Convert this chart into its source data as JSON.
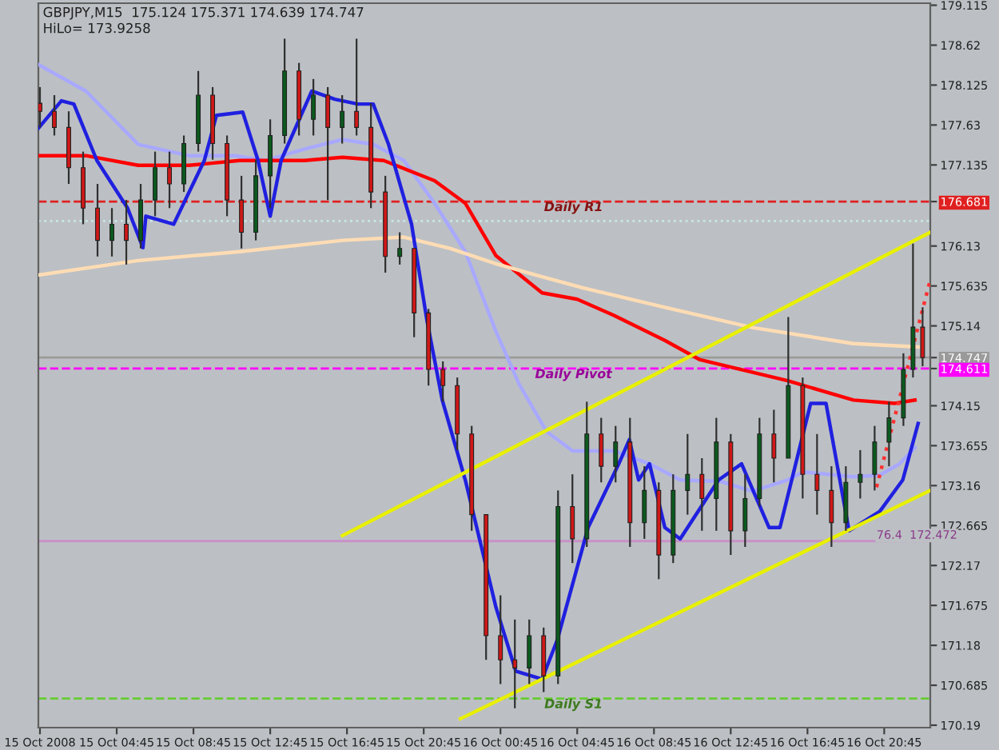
{
  "chart_data": {
    "type": "candlestick",
    "annotations": [
      "GBPJPY,M15  175.124 175.371 174.639 174.747",
      "HiLo= 173.9258",
      {
        "text": "76.4  172.472",
        "x": "2008-10-16T20:21",
        "y": 172.472
      }
    ],
    "x": [
      "2008-10-15T00:45",
      "2008-10-15T01:30",
      "2008-10-15T02:15",
      "2008-10-15T03:00",
      "2008-10-15T03:45",
      "2008-10-15T04:30",
      "2008-10-15T05:15",
      "2008-10-15T06:00",
      "2008-10-15T06:45",
      "2008-10-15T07:30",
      "2008-10-15T08:15",
      "2008-10-15T09:00",
      "2008-10-15T09:45",
      "2008-10-15T10:30",
      "2008-10-15T11:15",
      "2008-10-15T12:00",
      "2008-10-15T12:45",
      "2008-10-15T13:30",
      "2008-10-15T14:15",
      "2008-10-15T15:00",
      "2008-10-15T15:45",
      "2008-10-15T16:30",
      "2008-10-15T17:15",
      "2008-10-15T18:00",
      "2008-10-15T18:45",
      "2008-10-15T19:30",
      "2008-10-15T20:15",
      "2008-10-15T21:00",
      "2008-10-15T21:45",
      "2008-10-15T22:30",
      "2008-10-15T23:15",
      "2008-10-16T00:00",
      "2008-10-16T00:45",
      "2008-10-16T01:30",
      "2008-10-16T02:15",
      "2008-10-16T03:00",
      "2008-10-16T03:45",
      "2008-10-16T04:30",
      "2008-10-16T05:15",
      "2008-10-16T06:00",
      "2008-10-16T06:45",
      "2008-10-16T07:30",
      "2008-10-16T08:15",
      "2008-10-16T09:00",
      "2008-10-16T09:45",
      "2008-10-16T10:30",
      "2008-10-16T11:15",
      "2008-10-16T12:00",
      "2008-10-16T12:45",
      "2008-10-16T13:30",
      "2008-10-16T14:15",
      "2008-10-16T15:00",
      "2008-10-16T15:45",
      "2008-10-16T16:30",
      "2008-10-16T17:15",
      "2008-10-16T18:00",
      "2008-10-16T18:45",
      "2008-10-16T19:30",
      "2008-10-16T20:15",
      "2008-10-16T21:00",
      "2008-10-16T21:45",
      "2008-10-16T22:15",
      "2008-10-16T22:45"
    ],
    "ohlc": [
      [
        177.9,
        178.1,
        177.6,
        177.8
      ],
      [
        177.8,
        178.0,
        177.5,
        177.6
      ],
      [
        177.6,
        177.8,
        176.9,
        177.1
      ],
      [
        177.1,
        177.3,
        176.4,
        176.6
      ],
      [
        176.6,
        176.9,
        176.0,
        176.2
      ],
      [
        176.2,
        176.6,
        176.0,
        176.4
      ],
      [
        176.4,
        176.7,
        175.9,
        176.2
      ],
      [
        176.2,
        176.9,
        176.1,
        176.7
      ],
      [
        176.7,
        177.3,
        176.5,
        177.1
      ],
      [
        177.1,
        177.3,
        176.6,
        176.9
      ],
      [
        176.9,
        177.5,
        176.8,
        177.4
      ],
      [
        177.4,
        178.3,
        177.3,
        178.0
      ],
      [
        178.0,
        178.1,
        177.2,
        177.4
      ],
      [
        177.4,
        177.5,
        176.5,
        176.7
      ],
      [
        176.7,
        177.0,
        176.1,
        176.3
      ],
      [
        176.3,
        177.2,
        176.2,
        177.0
      ],
      [
        177.0,
        177.7,
        176.6,
        177.5
      ],
      [
        177.5,
        178.7,
        177.4,
        178.3
      ],
      [
        178.3,
        178.4,
        177.5,
        177.7
      ],
      [
        177.7,
        178.2,
        177.5,
        178.0
      ],
      [
        178.0,
        178.1,
        176.7,
        177.6
      ],
      [
        177.6,
        178.0,
        177.4,
        177.8
      ],
      [
        177.8,
        178.7,
        177.5,
        177.6
      ],
      [
        177.6,
        177.9,
        176.6,
        176.8
      ],
      [
        176.8,
        177.0,
        175.8,
        176.0
      ],
      [
        176.0,
        176.3,
        175.9,
        176.1
      ],
      [
        176.1,
        176.1,
        175.0,
        175.3
      ],
      [
        175.3,
        175.35,
        174.4,
        174.6
      ],
      [
        174.6,
        174.7,
        174.2,
        174.4
      ],
      [
        174.4,
        174.5,
        173.6,
        173.8
      ],
      [
        173.8,
        173.9,
        172.6,
        172.8
      ],
      [
        172.8,
        172.8,
        171.0,
        171.3
      ],
      [
        171.3,
        171.8,
        170.7,
        171.0
      ],
      [
        171.0,
        171.5,
        170.4,
        170.9
      ],
      [
        170.9,
        171.5,
        170.7,
        171.3
      ],
      [
        171.3,
        171.4,
        170.6,
        170.8
      ],
      [
        170.8,
        173.1,
        170.7,
        172.9
      ],
      [
        172.9,
        173.3,
        172.2,
        172.5
      ],
      [
        172.5,
        174.2,
        172.4,
        173.8
      ],
      [
        173.8,
        174.0,
        173.2,
        173.4
      ],
      [
        173.4,
        173.9,
        173.2,
        173.7
      ],
      [
        173.7,
        174.0,
        172.4,
        172.7
      ],
      [
        172.7,
        173.4,
        172.5,
        173.1
      ],
      [
        173.1,
        173.2,
        172.0,
        172.3
      ],
      [
        172.3,
        173.3,
        172.2,
        173.1
      ],
      [
        173.1,
        173.8,
        172.8,
        173.3
      ],
      [
        173.3,
        173.5,
        172.6,
        173.0
      ],
      [
        173.0,
        174.0,
        172.6,
        173.7
      ],
      [
        173.7,
        173.8,
        172.3,
        172.6
      ],
      [
        172.6,
        173.3,
        172.4,
        173.0
      ],
      [
        173.0,
        174.0,
        172.9,
        173.8
      ],
      [
        173.8,
        174.1,
        173.2,
        173.5
      ],
      [
        173.5,
        175.25,
        173.5,
        174.4
      ],
      [
        174.4,
        174.5,
        173.0,
        173.3
      ],
      [
        173.3,
        173.8,
        172.8,
        173.1
      ],
      [
        173.1,
        173.4,
        172.4,
        172.7
      ],
      [
        172.7,
        173.4,
        172.6,
        173.2
      ],
      [
        173.2,
        173.6,
        173.0,
        173.3
      ],
      [
        173.3,
        173.9,
        173.1,
        173.7
      ],
      [
        173.7,
        174.2,
        173.4,
        174.0
      ],
      [
        174.0,
        174.8,
        173.9,
        174.6
      ],
      [
        174.6,
        176.16,
        174.5,
        175.124
      ],
      [
        175.124,
        175.371,
        174.639,
        174.747
      ]
    ],
    "series": [
      {
        "type": "line",
        "color": "#a8a8ff",
        "x": [
          "2008-10-15T00:40",
          "2008-10-15T03:09",
          "2008-10-15T05:52",
          "2008-10-15T08:31",
          "2008-10-15T10:55",
          "2008-10-15T12:31",
          "2008-10-15T14:31",
          "2008-10-15T16:31",
          "2008-10-15T18:07",
          "2008-10-15T19:43",
          "2008-10-15T21:19",
          "2008-10-15T22:55",
          "2008-10-16T00:31",
          "2008-10-16T01:43",
          "2008-10-16T03:09",
          "2008-10-16T04:31",
          "2008-10-16T06:40",
          "2008-10-16T08:31",
          "2008-10-16T10:07",
          "2008-10-16T12:16",
          "2008-10-16T13:52",
          "2008-10-16T15:43",
          "2008-10-16T16:31",
          "2008-10-16T19:09",
          "2008-10-16T20:31",
          "2008-10-16T21:33",
          "2008-10-16T22:21"
        ],
        "values": [
          178.38,
          178.05,
          177.39,
          177.25,
          177.25,
          177.19,
          177.33,
          177.45,
          177.39,
          177.19,
          176.66,
          176.06,
          175.07,
          174.42,
          173.83,
          173.59,
          173.59,
          173.43,
          173.23,
          173.21,
          173.09,
          173.23,
          173.33,
          173.27,
          173.29,
          173.43,
          173.63
        ]
      },
      {
        "type": "line",
        "color": "#ff0000",
        "x": [
          "2008-10-15T00:40",
          "2008-10-15T03:09",
          "2008-10-15T05:52",
          "2008-10-15T08:31",
          "2008-10-15T11:09",
          "2008-10-15T14:31",
          "2008-10-15T16:31",
          "2008-10-15T18:40",
          "2008-10-15T21:19",
          "2008-10-15T22:55",
          "2008-10-16T00:31",
          "2008-10-16T02:55",
          "2008-10-16T04:45",
          "2008-10-16T06:40",
          "2008-10-16T09:19",
          "2008-10-16T11:09",
          "2008-10-16T15:43",
          "2008-10-16T19:09",
          "2008-10-16T21:19",
          "2008-10-16T22:21"
        ],
        "values": [
          177.25,
          177.25,
          177.13,
          177.13,
          177.19,
          177.19,
          177.23,
          177.19,
          176.94,
          176.66,
          176.01,
          175.55,
          175.47,
          175.27,
          174.96,
          174.72,
          174.46,
          174.22,
          174.18,
          174.22
        ]
      },
      {
        "type": "line",
        "color": "#ffdcb4",
        "x": [
          "2008-10-15T00:40",
          "2008-10-15T05:52",
          "2008-10-15T11:09",
          "2008-10-15T16:31",
          "2008-10-15T19:43",
          "2008-10-15T22:07",
          "2008-10-16T00:31",
          "2008-10-16T02:55",
          "2008-10-16T05:04",
          "2008-10-16T09:19",
          "2008-10-16T13:52",
          "2008-10-16T19:09",
          "2008-10-16T22:31"
        ],
        "values": [
          175.77,
          175.95,
          176.06,
          176.2,
          176.24,
          176.1,
          175.91,
          175.75,
          175.61,
          175.37,
          175.12,
          174.92,
          174.88
        ]
      },
      {
        "type": "line",
        "color": "#2020e0",
        "x": [
          "2008-10-15T00:40",
          "2008-10-15T01:52",
          "2008-10-15T02:31",
          "2008-10-15T03:43",
          "2008-10-15T05:19",
          "2008-10-15T06:07",
          "2008-10-15T06:16",
          "2008-10-15T07:43",
          "2008-10-15T09:19",
          "2008-10-15T09:57",
          "2008-10-15T11:19",
          "2008-10-15T12:07",
          "2008-10-15T12:45",
          "2008-10-15T13:19",
          "2008-10-15T14:55",
          "2008-10-15T16:07",
          "2008-10-15T17:19",
          "2008-10-15T18:07",
          "2008-10-15T18:55",
          "2008-10-15T20:07",
          "2008-10-15T20:55",
          "2008-10-15T21:43",
          "2008-10-15T22:55",
          "2008-10-16T00:31",
          "2008-10-16T01:33",
          "2008-10-16T02:55",
          "2008-10-16T03:43",
          "2008-10-16T05:19",
          "2008-10-16T06:55",
          "2008-10-16T07:28",
          "2008-10-16T07:57",
          "2008-10-16T08:31",
          "2008-10-16T09:19",
          "2008-10-16T10:07",
          "2008-10-16T12:07",
          "2008-10-16T13:19",
          "2008-10-16T14:45",
          "2008-10-16T15:19",
          "2008-10-16T16:55",
          "2008-10-16T17:43",
          "2008-10-16T18:55",
          "2008-10-16T20:31",
          "2008-10-16T21:43",
          "2008-10-16T22:31"
        ],
        "values": [
          177.59,
          177.93,
          177.89,
          177.19,
          176.6,
          176.11,
          176.5,
          176.4,
          177.19,
          177.75,
          177.79,
          177.19,
          176.5,
          177.19,
          178.05,
          177.95,
          177.89,
          177.89,
          177.39,
          176.4,
          175.21,
          174.22,
          173.23,
          171.65,
          170.86,
          170.76,
          171.25,
          172.64,
          173.43,
          173.73,
          173.23,
          173.43,
          172.64,
          172.5,
          173.23,
          173.43,
          172.64,
          172.64,
          174.18,
          174.18,
          172.6,
          172.84,
          173.23,
          173.93
        ]
      },
      {
        "type": "line",
        "color": "#e8f000",
        "x": [
          "2008-10-15T16:31",
          "2008-10-16T23:09"
        ],
        "values": [
          172.54,
          176.3
        ]
      },
      {
        "type": "line",
        "color": "#e8f000",
        "x": [
          "2008-10-15T22:40",
          "2008-10-16T23:09"
        ],
        "values": [
          170.27,
          173.1
        ]
      },
      {
        "type": "line",
        "color": "#ff3030",
        "line_style": "dotted",
        "x": [
          "2008-10-16T20:21",
          "2008-10-16T23:09"
        ],
        "values": [
          173.14,
          175.71
        ]
      }
    ],
    "ref_lines": [
      {
        "axis": "y",
        "value": 176.681,
        "label": "Daily R1",
        "color": "#e02020",
        "line_style": "dashed"
      },
      {
        "axis": "y",
        "value": 176.44,
        "label": null,
        "color": "#c8e8e8",
        "line_style": "dotted"
      },
      {
        "axis": "y",
        "value": 174.747,
        "label": null,
        "color": "#9a9a9a",
        "line_style": "solid"
      },
      {
        "axis": "y",
        "value": 174.611,
        "label": "Daily Pivot",
        "color": "#ff00ff",
        "line_style": "dashed"
      },
      {
        "axis": "y",
        "value": 172.472,
        "label": null,
        "color": "#c890c8",
        "line_style": "solid"
      },
      {
        "axis": "y",
        "value": 170.52,
        "label": "Daily S1",
        "color": "#66cc33",
        "line_style": "dashed"
      }
    ],
    "xlim": [
      "2008-10-15T00:40",
      "2008-10-16T23:09"
    ],
    "ylim": [
      170.16,
      179.14
    ],
    "xticks": [
      {
        "value": "2008-10-15T00:45",
        "label": "15 Oct 2008"
      },
      {
        "value": "2008-10-15T04:45",
        "label": "15 Oct 04:45"
      },
      {
        "value": "2008-10-15T08:45",
        "label": "15 Oct 08:45"
      },
      {
        "value": "2008-10-15T12:45",
        "label": "15 Oct 12:45"
      },
      {
        "value": "2008-10-15T16:45",
        "label": "15 Oct 16:45"
      },
      {
        "value": "2008-10-15T20:45",
        "label": "15 Oct 20:45"
      },
      {
        "value": "2008-10-16T00:45",
        "label": "16 Oct 00:45"
      },
      {
        "value": "2008-10-16T04:45",
        "label": "16 Oct 04:45"
      },
      {
        "value": "2008-10-16T08:45",
        "label": "16 Oct 08:45"
      },
      {
        "value": "2008-10-16T12:45",
        "label": "16 Oct 12:45"
      },
      {
        "value": "2008-10-16T16:45",
        "label": "16 Oct 16:45"
      },
      {
        "value": "2008-10-16T20:45",
        "label": "16 Oct 20:45"
      }
    ],
    "yticks": [
      179.115,
      178.62,
      178.125,
      177.63,
      177.135,
      {
        "value": 176.681,
        "label": "176.681"
      },
      176.13,
      175.635,
      175.14,
      {
        "value": 174.747,
        "label": "174.747"
      },
      {
        "value": 174.611,
        "label": "174.611"
      },
      174.15,
      173.655,
      173.16,
      172.665,
      172.17,
      171.675,
      171.18,
      170.685,
      170.19
    ],
    "grid": false,
    "legend": false
  }
}
